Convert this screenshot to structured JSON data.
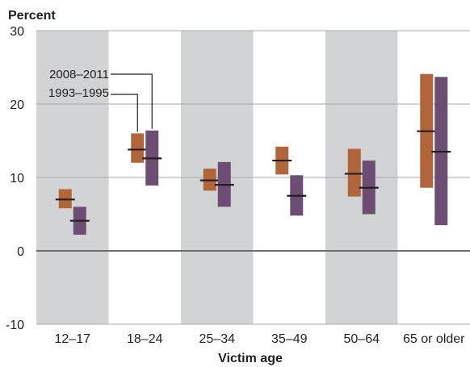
{
  "chart_data": {
    "type": "range",
    "ylabel": "Percent",
    "xlabel": "Victim age",
    "ylim": [
      -10,
      30
    ],
    "yticks": [
      -10,
      0,
      10,
      20,
      30
    ],
    "categories": [
      "12–17",
      "18–24",
      "25–34",
      "35–49",
      "50–64",
      "65 or older"
    ],
    "series": [
      {
        "name": "2008–2011",
        "color": "#b0663a",
        "points": [
          {
            "low": 5.8,
            "mid": 7.0,
            "high": 8.4
          },
          {
            "low": 12.0,
            "mid": 13.8,
            "high": 16.0
          },
          {
            "low": 8.2,
            "mid": 9.6,
            "high": 11.2
          },
          {
            "low": 10.4,
            "mid": 12.3,
            "high": 14.2
          },
          {
            "low": 7.4,
            "mid": 10.5,
            "high": 13.9
          },
          {
            "low": 8.6,
            "mid": 16.3,
            "high": 24.1
          }
        ]
      },
      {
        "name": "1993–1995",
        "color": "#6e4d74",
        "points": [
          {
            "low": 2.2,
            "mid": 4.1,
            "high": 6.0
          },
          {
            "low": 8.9,
            "mid": 12.6,
            "high": 16.4
          },
          {
            "low": 6.0,
            "mid": 9.0,
            "high": 12.1
          },
          {
            "low": 4.8,
            "mid": 7.5,
            "high": 10.3
          },
          {
            "low": 5.0,
            "mid": 8.6,
            "high": 12.3
          },
          {
            "low": 3.5,
            "mid": 13.5,
            "high": 23.7
          }
        ]
      }
    ],
    "band_colors": [
      "#d1d3d4",
      "#ffffff"
    ],
    "annotation_labels": [
      "2008–2011",
      "1993–1995"
    ]
  }
}
